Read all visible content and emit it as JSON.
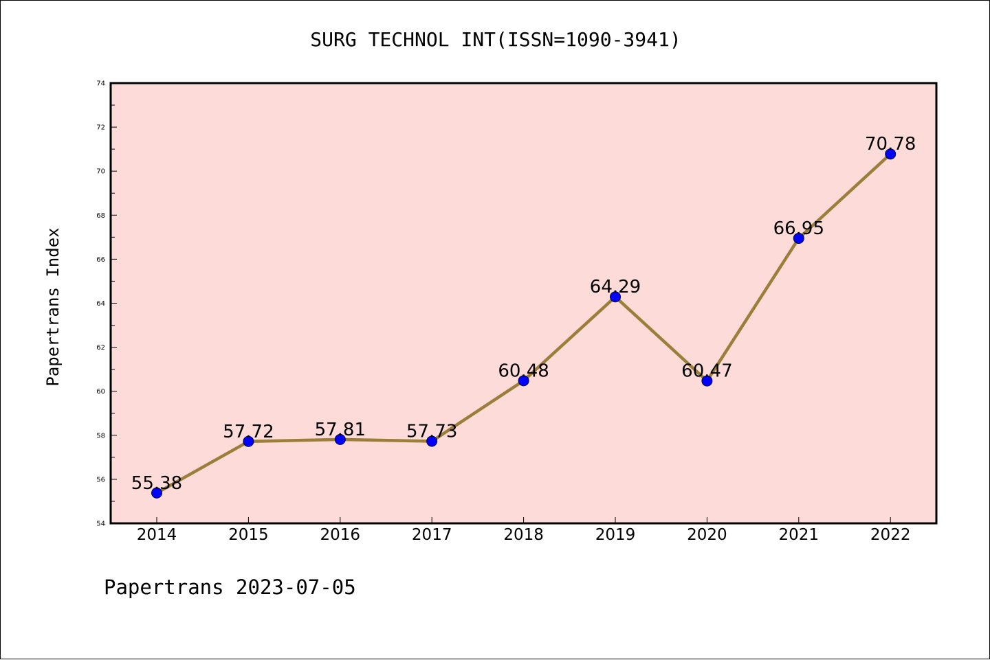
{
  "chart_data": {
    "type": "line",
    "title": "SURG TECHNOL INT(ISSN=1090-3941)",
    "ylabel": "Papertrans Index",
    "xlabel": "",
    "categories": [
      "2014",
      "2015",
      "2016",
      "2017",
      "2018",
      "2019",
      "2020",
      "2021",
      "2022"
    ],
    "series": [
      {
        "values": [
          55.38,
          57.72,
          57.81,
          57.73,
          60.48,
          64.29,
          60.47,
          66.95,
          70.78
        ],
        "labels": [
          "55.38",
          "57.72",
          "57.81",
          "57.73",
          "60.48",
          "64.29",
          "60.47",
          "66.95",
          "70.78"
        ]
      }
    ],
    "ylim": [
      54,
      74
    ],
    "yticks": [
      54,
      56,
      58,
      60,
      62,
      64,
      66,
      68,
      70,
      72,
      74
    ],
    "grid": false,
    "legend": "none",
    "colors": {
      "plot_background": "#fddbd8",
      "line": "#9b7e3a",
      "marker": "#0000ff"
    }
  },
  "footer": "Papertrans 2023-07-05"
}
